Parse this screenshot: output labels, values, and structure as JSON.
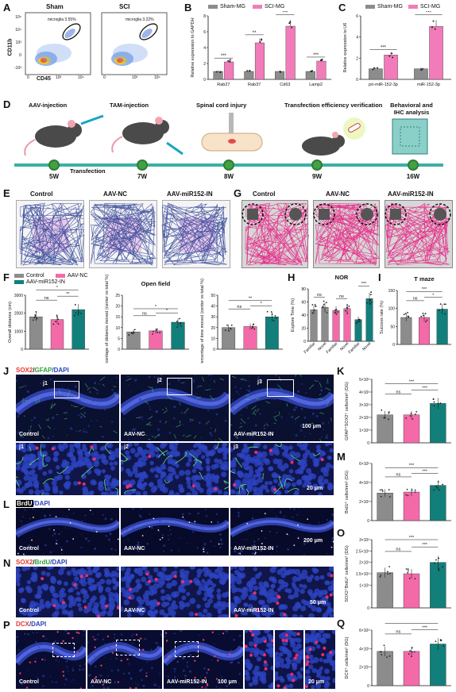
{
  "panels": {
    "A": {
      "letter": "A",
      "sham_title": "Sham",
      "sci_title": "SCI",
      "sham_gate": "microglia 3.55%",
      "sci_gate": "microglia 3.22%",
      "ylabel": "CD11b",
      "xlabel": "CD45",
      "yticks": [
        "10⁵",
        "10⁴",
        "10³",
        "0",
        "-10³"
      ],
      "xticks": [
        "0",
        "10³",
        "10⁴"
      ]
    },
    "B": {
      "letter": "B",
      "legend": [
        "Sham-MG",
        "SCI-MG"
      ],
      "ylabel": "Relative expression to GAPDH",
      "sig": [
        "***",
        "**",
        "***",
        "***"
      ]
    },
    "C": {
      "letter": "C",
      "legend": [
        "Sham-MG",
        "SCI-MG"
      ],
      "ylabel": "Relative expression to U6",
      "sig": [
        "***",
        "***"
      ]
    },
    "D": {
      "letter": "D",
      "steps": [
        "AAV-injection",
        "TAM-injection",
        "Spinal cord injury",
        "Transfection efficiency verification",
        "Behavioral and IHC analysis"
      ],
      "weeks": [
        "5W",
        "7W",
        "8W",
        "9W",
        "16W"
      ],
      "transfection": "Transfection"
    },
    "E": {
      "letter": "E",
      "groups": [
        "Control",
        "AAV-NC",
        "AAV-miR152-IN"
      ]
    },
    "G": {
      "letter": "G",
      "groups": [
        "Control",
        "AAV-NC",
        "AAV-miR152-IN"
      ]
    },
    "F": {
      "letter": "F",
      "legend": [
        "Control",
        "AAV-NC",
        "AAV-miR152-IN"
      ],
      "open_field_title": "Open field"
    },
    "H": {
      "letter": "H",
      "title": "NOR"
    },
    "I": {
      "letter": "I",
      "title": "T maze"
    },
    "J": {
      "letter": "J",
      "stain": [
        "SOX2",
        "/",
        "GFAP",
        "/DAPI"
      ],
      "groups": [
        "Control",
        "AAV-NC",
        "AAV-miR152-IN"
      ],
      "insets": [
        "j1",
        "j2",
        "j3"
      ],
      "scale": "100 μm",
      "scale2": "20 μm"
    },
    "K": {
      "letter": "K"
    },
    "L": {
      "letter": "L",
      "stain": [
        "BrdU",
        "/DAPI"
      ],
      "groups": [
        "Control",
        "AAV-NC",
        "AAV-miR152-IN"
      ],
      "scale": "200 μm"
    },
    "M": {
      "letter": "M"
    },
    "N": {
      "letter": "N",
      "stain": [
        "SOX2",
        "/",
        "BrdU",
        "/DAPI"
      ],
      "groups": [
        "Control",
        "AAV-NC",
        "AAV-miR152-IN"
      ],
      "scale": "50 μm"
    },
    "O": {
      "letter": "O"
    },
    "P": {
      "letter": "P",
      "stain": [
        "DCX",
        "/DAPI"
      ],
      "groups": [
        "Control",
        "AAV-NC",
        "AAV-miR152-IN"
      ],
      "scale": "100 μm",
      "scale2": "20 μm"
    },
    "Q": {
      "letter": "Q"
    }
  },
  "colors": {
    "sham": "#8c8c8c",
    "sci": "#f27cb9",
    "control": "#8c8c8c",
    "nc": "#f46aa9",
    "in": "#127f7a"
  },
  "chart_data": [
    {
      "id": "B",
      "type": "bar",
      "categories": [
        "Rab27",
        "Rab37",
        "Cd63",
        "Lamp2"
      ],
      "ylabel": "Relative expression to GAPDH",
      "ylim": [
        0,
        8
      ],
      "yticks": [
        0,
        2,
        4,
        6,
        8
      ],
      "series": [
        {
          "name": "Sham-MG",
          "values": [
            1.0,
            1.0,
            1.0,
            1.0
          ]
        },
        {
          "name": "SCI-MG",
          "values": [
            2.2,
            4.6,
            6.7,
            2.3
          ]
        }
      ]
    },
    {
      "id": "C",
      "type": "bar",
      "categories": [
        "pri-miR-152-3p",
        "miR-152-3p"
      ],
      "ylabel": "Relative expression to U6",
      "ylim": [
        0,
        6
      ],
      "yticks": [
        0,
        2,
        4,
        6
      ],
      "series": [
        {
          "name": "Sham-MG",
          "values": [
            1.0,
            1.0
          ]
        },
        {
          "name": "SCI-MG",
          "values": [
            2.3,
            5.0
          ]
        }
      ]
    },
    {
      "id": "F1",
      "type": "bar",
      "categories": [
        "Control",
        "AAV-NC",
        "AAV-miR152-IN"
      ],
      "ylabel": "Overall distance (cm)",
      "ylim": [
        0,
        3000
      ],
      "yticks": [
        0,
        1000,
        2000,
        3000
      ],
      "values": [
        1800,
        1650,
        2200
      ],
      "sig": [
        [
          "ns",
          0,
          1
        ],
        [
          "**",
          1,
          2
        ],
        [
          "*",
          0,
          2
        ]
      ]
    },
    {
      "id": "F2",
      "type": "bar",
      "title": "Open field",
      "categories": [
        "Control",
        "AAV-NC",
        "AAV-miR152-IN"
      ],
      "ylabel": "Percentage of distance moved (center vs total %)",
      "ylim": [
        0,
        25
      ],
      "yticks": [
        0,
        5,
        10,
        15,
        20,
        25
      ],
      "values": [
        8,
        8.5,
        12.5
      ],
      "sig": [
        [
          "ns",
          0,
          1
        ],
        [
          "*",
          1,
          2
        ],
        [
          "*",
          0,
          2
        ]
      ]
    },
    {
      "id": "F3",
      "type": "bar",
      "categories": [
        "Control",
        "AAV-NC",
        "AAV-miR152-IN"
      ],
      "ylabel": "Percentage of time moved (center vs total %)",
      "ylim": [
        0,
        50
      ],
      "yticks": [
        0,
        10,
        20,
        30,
        40,
        50
      ],
      "values": [
        20,
        21,
        30
      ],
      "sig": [
        [
          "ns",
          0,
          1
        ],
        [
          "*",
          1,
          2
        ],
        [
          "**",
          0,
          2
        ]
      ]
    },
    {
      "id": "H",
      "type": "bar",
      "title": "NOR",
      "categories": [
        "Familiar",
        "Novel",
        "Familiar",
        "Novel",
        "Familiar",
        "Novel"
      ],
      "ylabel": "Explore Time (%)",
      "ylim": [
        0,
        80
      ],
      "yticks": [
        0,
        20,
        40,
        60,
        80
      ],
      "values": [
        48,
        52,
        47,
        50,
        33,
        65
      ],
      "sig": [
        [
          "ns",
          0,
          1
        ],
        [
          "ns",
          2,
          3
        ],
        [
          "***",
          4,
          5
        ]
      ]
    },
    {
      "id": "I",
      "type": "bar",
      "title": "T maze",
      "categories": [
        "Control",
        "AAV-NC",
        "AAV-miR152-IN"
      ],
      "ylabel": "Success rate (%)",
      "ylim": [
        0,
        150
      ],
      "yticks": [
        0,
        50,
        100,
        150
      ],
      "values": [
        75,
        75,
        98
      ],
      "sig": [
        [
          "ns",
          0,
          1
        ],
        [
          "*",
          1,
          2
        ],
        [
          "***",
          0,
          2
        ]
      ]
    },
    {
      "id": "K",
      "type": "bar",
      "categories": [
        "Control",
        "AAV-NC",
        "AAV-miR152-IN"
      ],
      "ylabel": "GFAP⁺SOX2⁺ cells/mm² (DG)",
      "ylim": [
        0,
        5
      ],
      "yticks": [
        0,
        1,
        2,
        3,
        4,
        5
      ],
      "ytick_labels": [
        "0",
        "1×10³",
        "2×10³",
        "3×10³",
        "4×10³",
        "5×10³"
      ],
      "values": [
        2.2,
        2.2,
        3.1
      ],
      "sig": [
        [
          "ns",
          0,
          1
        ],
        [
          "***",
          1,
          2
        ],
        [
          "***",
          0,
          2
        ]
      ]
    },
    {
      "id": "M",
      "type": "bar",
      "categories": [
        "Control",
        "AAV-NC",
        "AAV-miR152-IN"
      ],
      "ylabel": "BrdU⁺ cells/mm² (DG)",
      "ylim": [
        0,
        6
      ],
      "yticks": [
        0,
        2,
        4,
        6
      ],
      "ytick_labels": [
        "0",
        "2×10³",
        "4×10³",
        "6×10³"
      ],
      "values": [
        2.9,
        3.0,
        3.7
      ],
      "sig": [
        [
          "ns",
          0,
          1
        ],
        [
          "***",
          1,
          2
        ],
        [
          "***",
          0,
          2
        ]
      ]
    },
    {
      "id": "O",
      "type": "bar",
      "categories": [
        "Control",
        "AAV-NC",
        "AAV-miR152-IN"
      ],
      "ylabel": "SOX2⁺BrdU⁺ cells/mm² (DG)",
      "ylim": [
        0,
        3
      ],
      "yticks": [
        0,
        1,
        1.5,
        2,
        2.5,
        3
      ],
      "ytick_labels": [
        "0",
        "1×10³",
        "1.5×10³",
        "2×10³",
        "2.5×10³",
        "3×10³"
      ],
      "values": [
        1.55,
        1.5,
        2.0
      ],
      "sig": [
        [
          "ns",
          0,
          1
        ],
        [
          "***",
          1,
          2
        ],
        [
          "***",
          0,
          2
        ]
      ]
    },
    {
      "id": "Q",
      "type": "bar",
      "categories": [
        "Control",
        "AAV-NC",
        "AAV-miR152-IN"
      ],
      "ylabel": "DCX⁺ cells/mm² (DG)",
      "ylim": [
        0,
        6
      ],
      "yticks": [
        0,
        2,
        4,
        6
      ],
      "ytick_labels": [
        "0",
        "2×10³",
        "4×10³",
        "6×10³"
      ],
      "values": [
        3.7,
        3.7,
        4.5
      ],
      "sig": [
        [
          "ns",
          0,
          1
        ],
        [
          "***",
          1,
          2
        ],
        [
          "***",
          0,
          2
        ]
      ]
    }
  ]
}
